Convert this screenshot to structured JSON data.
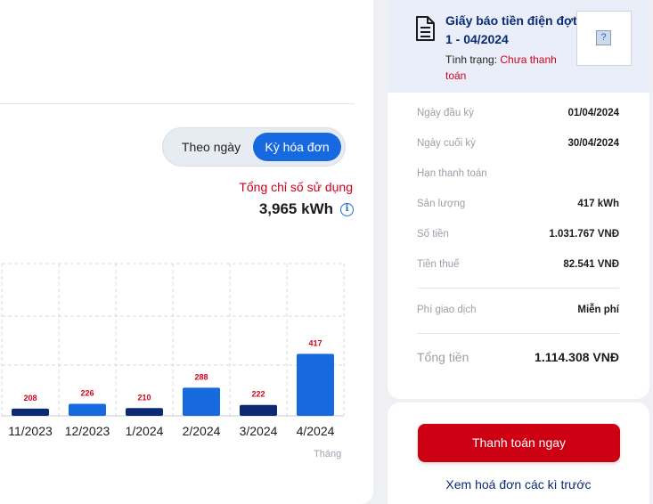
{
  "toggle": {
    "by_day": "Theo ngày",
    "by_bill": "Kỳ hóa đơn"
  },
  "usage": {
    "label": "Tổng chỉ số sử dụng",
    "value": "3,965 kWh"
  },
  "chart_data": {
    "type": "bar",
    "categories": [
      "11/2023",
      "12/2023",
      "1/2024",
      "2/2024",
      "3/2024",
      "4/2024"
    ],
    "values": [
      208,
      226,
      210,
      288,
      222,
      417
    ],
    "bar_colors": [
      "#0b2a73",
      "#1769e0",
      "#0b2a73",
      "#1769e0",
      "#0b2a73",
      "#1769e0"
    ],
    "label_color": "#d0021b",
    "xlabel": "Tháng",
    "ylabel": "",
    "title": "",
    "grid": true,
    "legend": "none"
  },
  "bill": {
    "title": "Giấy báo tiền điện đợt 1 - 04/2024",
    "status_label": "Tình trạng:",
    "status_value": "Chưa thanh toán",
    "rows": [
      {
        "label": "Ngày đầu kỳ",
        "value": "01/04/2024"
      },
      {
        "label": "Ngày cuối kỳ",
        "value": "30/04/2024"
      },
      {
        "label": "Hạn thanh toán",
        "value": ""
      },
      {
        "label": "Sản lượng",
        "value": "417 kWh"
      },
      {
        "label": "Số tiền",
        "value": "1.031.767 VNĐ"
      },
      {
        "label": "Tiền thuế",
        "value": "82.541 VNĐ"
      }
    ],
    "fee": {
      "label": "Phí giao dịch",
      "value": "Miễn phí"
    },
    "total": {
      "label": "Tổng tiền",
      "value": "1.114.308 VNĐ"
    }
  },
  "actions": {
    "pay_now": "Thanh toán ngay",
    "view_previous": "Xem hoá đơn các kì trước"
  },
  "colors": {
    "accent": "#1769e0",
    "dark_bar": "#0b2a73",
    "danger": "#d0021b",
    "title_navy": "#0a2a78"
  }
}
